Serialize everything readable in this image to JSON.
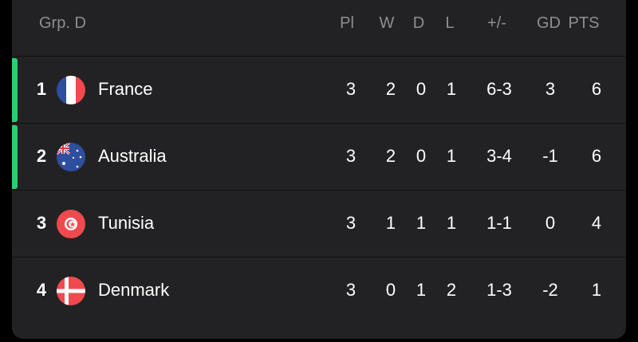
{
  "group": "Grp. D",
  "columns": {
    "pl": "Pl",
    "w": "W",
    "d": "D",
    "l": "L",
    "goals": "+/-",
    "gd": "GD",
    "pts": "PTS"
  },
  "qualified_color": "#2ecc71",
  "rows": [
    {
      "pos": "1",
      "team": "France",
      "flag": "france-flag-icon",
      "qualified": true,
      "pl": "3",
      "w": "2",
      "d": "0",
      "l": "1",
      "goals": "6-3",
      "gd": "3",
      "pts": "6"
    },
    {
      "pos": "2",
      "team": "Australia",
      "flag": "australia-flag-icon",
      "qualified": true,
      "pl": "3",
      "w": "2",
      "d": "0",
      "l": "1",
      "goals": "3-4",
      "gd": "-1",
      "pts": "6"
    },
    {
      "pos": "3",
      "team": "Tunisia",
      "flag": "tunisia-flag-icon",
      "qualified": false,
      "pl": "3",
      "w": "1",
      "d": "1",
      "l": "1",
      "goals": "1-1",
      "gd": "0",
      "pts": "4"
    },
    {
      "pos": "4",
      "team": "Denmark",
      "flag": "denmark-flag-icon",
      "qualified": false,
      "pl": "3",
      "w": "0",
      "d": "1",
      "l": "2",
      "goals": "1-3",
      "gd": "-2",
      "pts": "1"
    }
  ]
}
